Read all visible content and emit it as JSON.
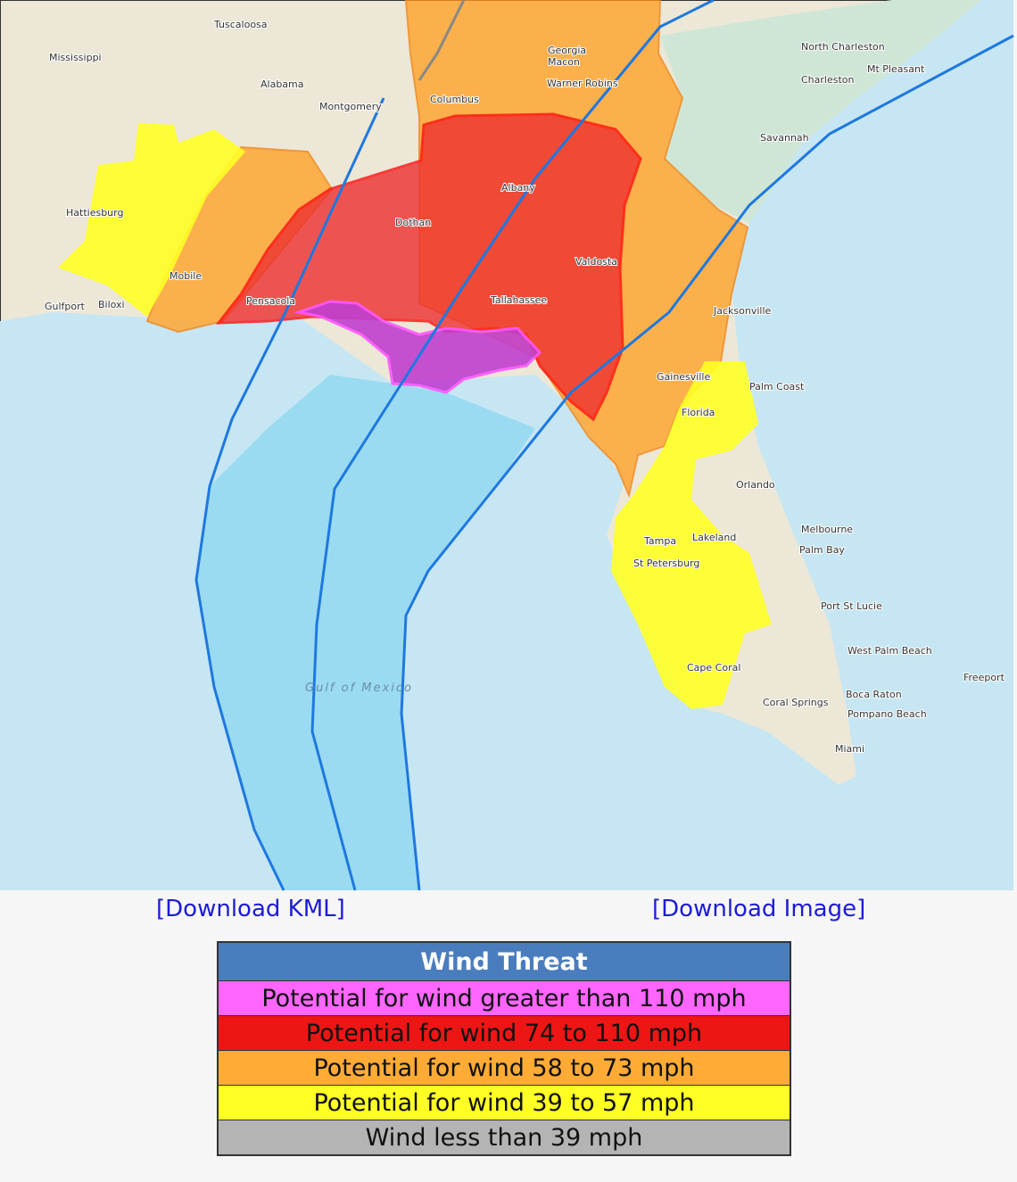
{
  "map": {
    "labels": [
      "Tuscaloosa",
      "Mississippi",
      "Alabama",
      "Montgomery",
      "Georgia",
      "Macon",
      "Warner Robins",
      "Columbus",
      "North Charleston",
      "Mt Pleasant",
      "Charleston",
      "Savannah",
      "Albany",
      "Hattiesburg",
      "Dothan",
      "Valdosta",
      "Mobile",
      "Pensacola",
      "Tallahassee",
      "Gulfport",
      "Biloxi",
      "Jacksonville",
      "Palm Coast",
      "Gainesville",
      "Florida",
      "Orlando",
      "Melbourne",
      "Palm Bay",
      "Tampa",
      "Lakeland",
      "St Petersburg",
      "Port St Lucie",
      "West Palm Beach",
      "Gulf of Mexico",
      "Cape Coral",
      "Boca Raton",
      "Coral Springs",
      "Pompano Beach",
      "Miami",
      "Freeport"
    ]
  },
  "links": [
    "[Download KML]",
    "[Download Image]"
  ],
  "legend": {
    "title": "Wind Threat",
    "items": [
      {
        "label": "Potential for wind greater than 110 mph",
        "color": "#ff66ff"
      },
      {
        "label": "Potential for wind 74 to 110 mph",
        "color": "#ee1515"
      },
      {
        "label": "Potential for wind 58 to 73 mph",
        "color": "#ffab36"
      },
      {
        "label": "Potential for wind 39 to 57 mph",
        "color": "#ffff26"
      },
      {
        "label": "Wind less than 39 mph",
        "color": "#b4b4b4"
      }
    ]
  }
}
